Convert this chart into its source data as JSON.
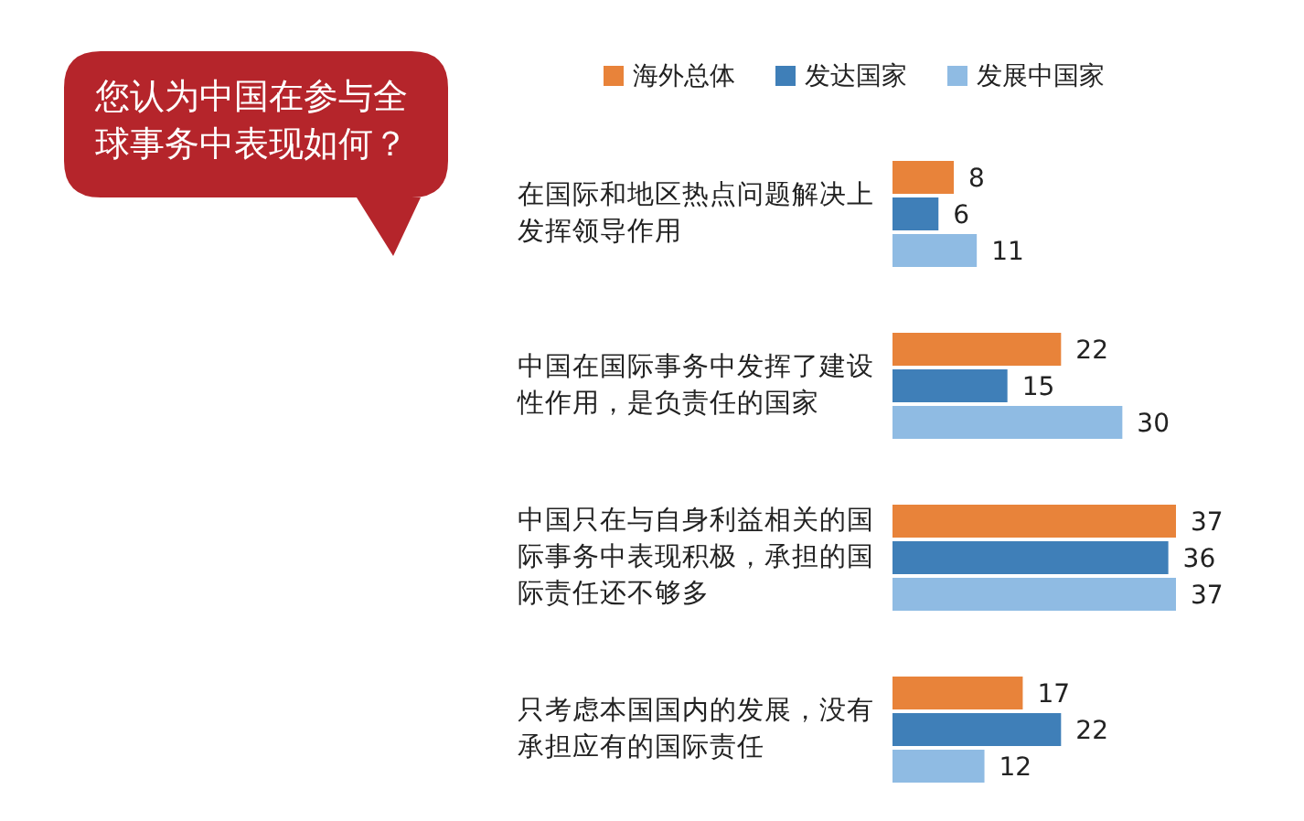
{
  "chart_data": {
    "type": "bar",
    "orientation": "horizontal",
    "title": "您认为中国在参与全球事务中表现如何？",
    "categories": [
      "在国际和地区热点问题解决上发挥领导作用",
      "中国在国际事务中发挥了建设性作用，是负责任的国家",
      "中国只在与自身利益相关的国际事务中表现积极，承担的国际责任还不够多",
      "只考虑本国国内的发展，没有承担应有的国际责任"
    ],
    "series": [
      {
        "name": "海外总体",
        "color": "#e8833a",
        "values": [
          8,
          22,
          37,
          17
        ]
      },
      {
        "name": "发达国家",
        "color": "#3f7fb8",
        "values": [
          6,
          15,
          36,
          22
        ]
      },
      {
        "name": "发展中国家",
        "color": "#8fbbe3",
        "values": [
          11,
          30,
          37,
          12
        ]
      }
    ],
    "data_labels": true,
    "legend": "top"
  }
}
